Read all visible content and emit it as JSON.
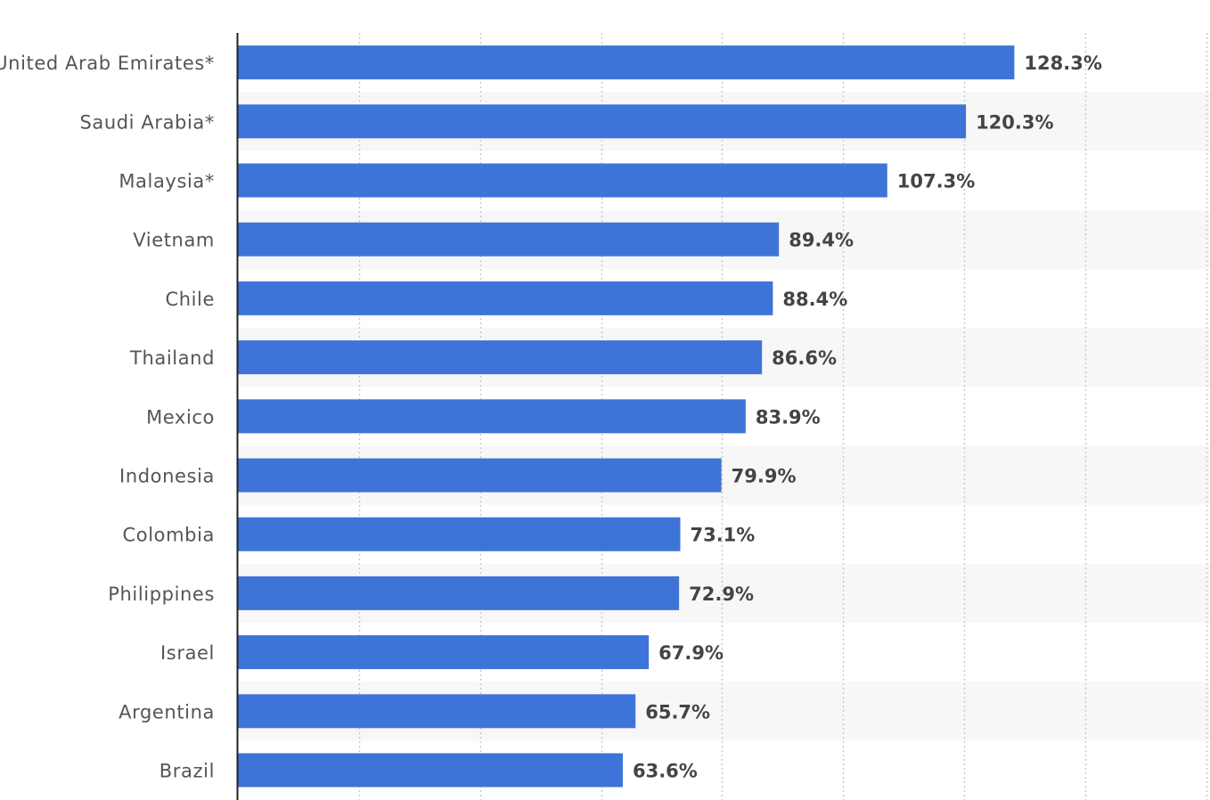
{
  "chart_data": {
    "type": "bar",
    "orientation": "horizontal",
    "categories": [
      "United Arab Emirates*",
      "Saudi Arabia*",
      "Malaysia*",
      "Vietnam",
      "Chile",
      "Thailand",
      "Mexico",
      "Indonesia",
      "Colombia",
      "Philippines",
      "Israel",
      "Argentina",
      "Brazil"
    ],
    "values": [
      128.3,
      120.3,
      107.3,
      89.4,
      88.4,
      86.6,
      83.9,
      79.9,
      73.1,
      72.9,
      67.9,
      65.7,
      63.6
    ],
    "value_labels": [
      "128.3%",
      "120.3%",
      "107.3%",
      "89.4%",
      "88.4%",
      "86.6%",
      "83.9%",
      "79.9%",
      "73.1%",
      "72.9%",
      "67.9%",
      "65.7%",
      "63.6%"
    ],
    "value_unit": "%",
    "xlim": [
      0,
      160
    ],
    "x_grid_step": 20,
    "grid": true,
    "gridline_style": "dotted",
    "alternating_row_bands": true,
    "title": "",
    "xlabel": "",
    "ylabel": "",
    "colors": {
      "bar": "#3e74d8",
      "grid": "#c8c8c8",
      "band": "#f7f7f7",
      "axis": "#222222",
      "category_text": "#555555",
      "value_text": "#444444"
    }
  }
}
